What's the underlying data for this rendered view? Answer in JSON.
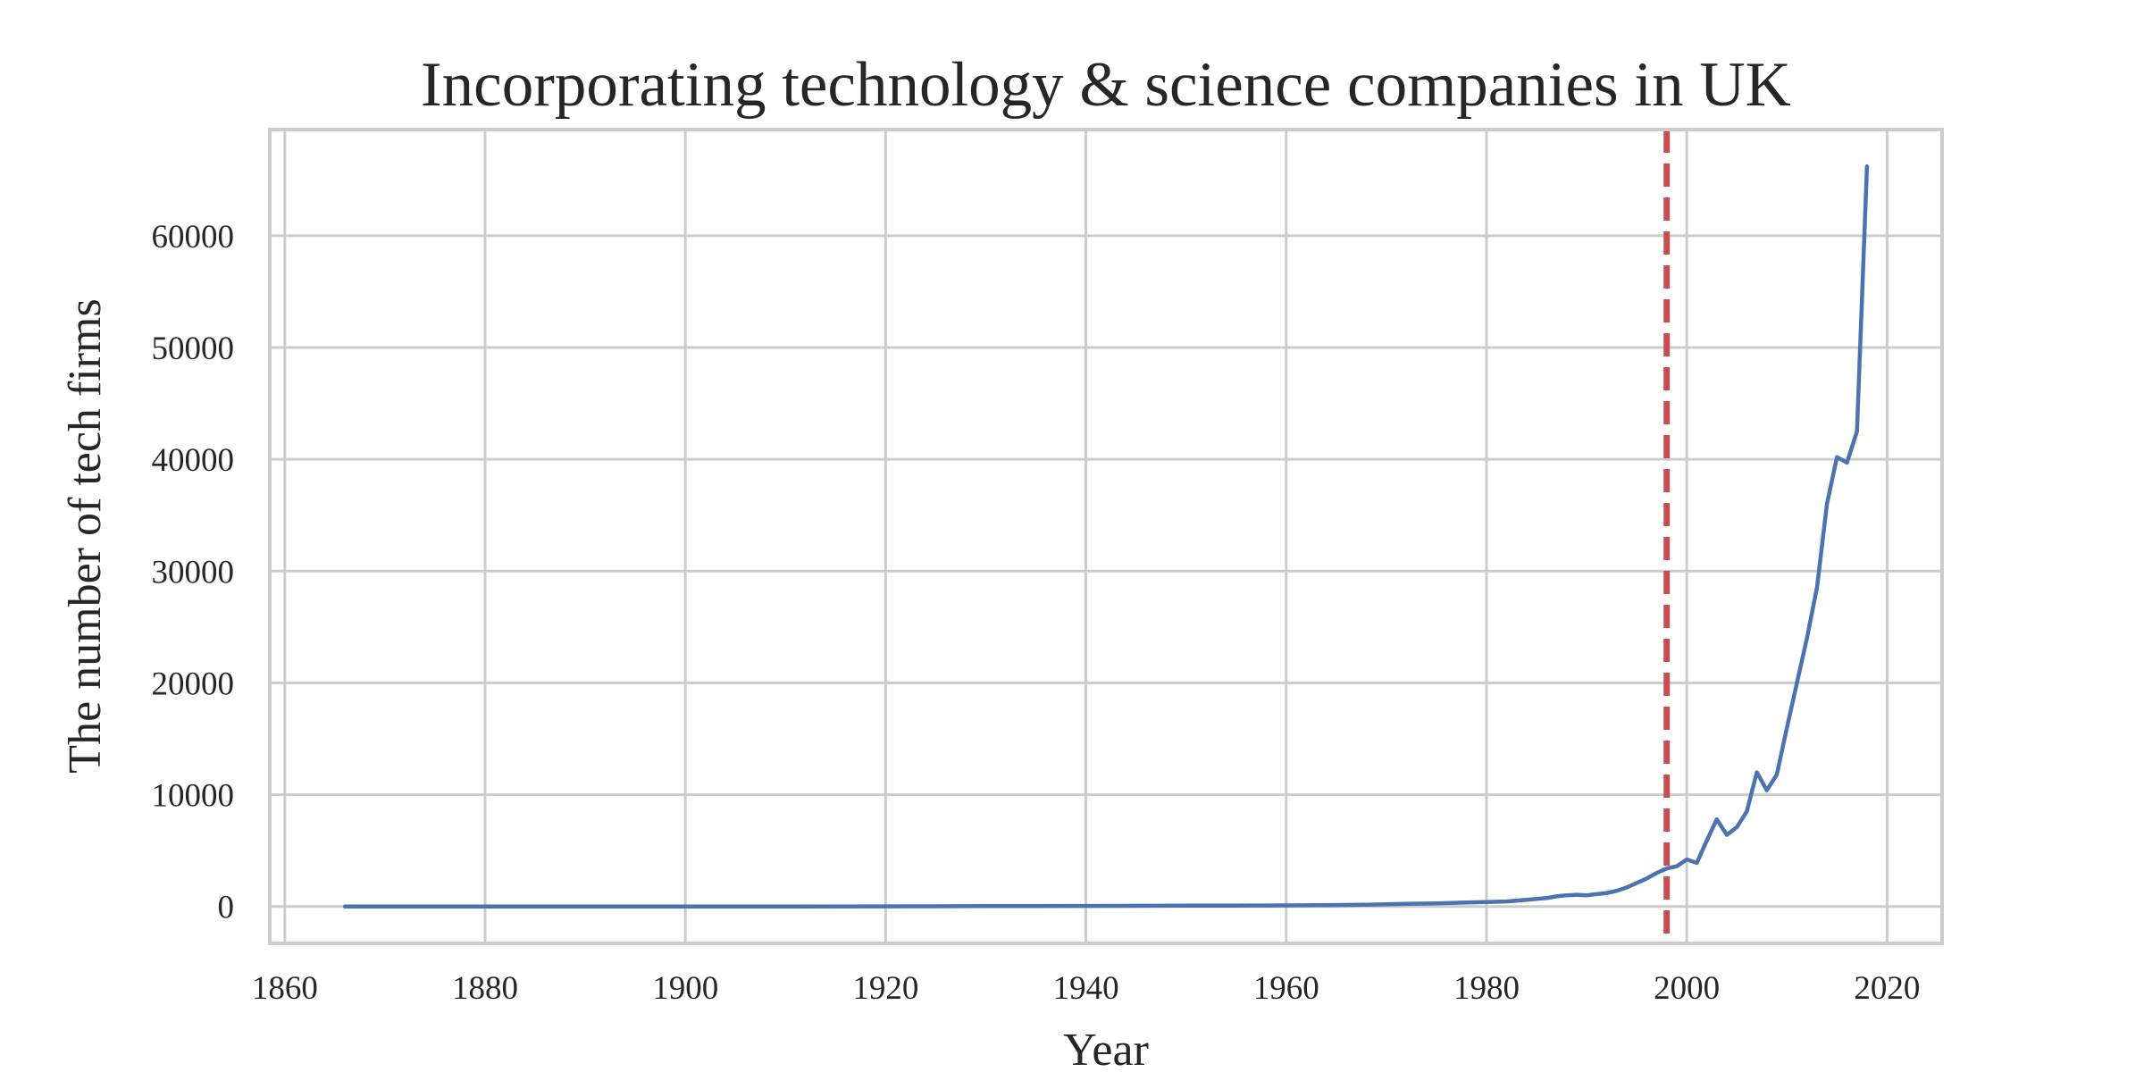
{
  "chart_data": {
    "type": "line",
    "title": "Incorporating technology & science companies in UK",
    "xlabel": "Year",
    "ylabel": "The number of tech firms",
    "xlim": [
      1858.5,
      2025.5
    ],
    "ylim": [
      -3300,
      69500
    ],
    "x_ticks": [
      1860,
      1880,
      1900,
      1920,
      1940,
      1960,
      1980,
      2000,
      2020
    ],
    "y_ticks": [
      0,
      10000,
      20000,
      30000,
      40000,
      50000,
      60000
    ],
    "grid": true,
    "legend": "none",
    "series": [
      {
        "color": "#4c72b0",
        "x": [
          1866,
          1870,
          1880,
          1890,
          1900,
          1910,
          1920,
          1925,
          1930,
          1935,
          1940,
          1945,
          1950,
          1955,
          1958,
          1960,
          1965,
          1968,
          1970,
          1972,
          1975,
          1978,
          1980,
          1982,
          1984,
          1986,
          1987,
          1988,
          1989,
          1990,
          1991,
          1992,
          1993,
          1994,
          1995,
          1996,
          1997,
          1998,
          1999,
          2000,
          2001,
          2002,
          2003,
          2004,
          2005,
          2006,
          2007,
          2008,
          2009,
          2010,
          2011,
          2012,
          2013,
          2014,
          2015,
          2016,
          2017,
          2018
        ],
        "y": [
          0,
          0,
          0,
          0,
          0,
          0,
          10,
          20,
          30,
          40,
          50,
          60,
          70,
          80,
          90,
          100,
          130,
          160,
          200,
          230,
          280,
          350,
          400,
          450,
          600,
          750,
          900,
          1000,
          1050,
          1000,
          1100,
          1200,
          1400,
          1700,
          2100,
          2500,
          3000,
          3400,
          3600,
          4200,
          3900,
          5900,
          7800,
          6400,
          7100,
          8500,
          12000,
          10400,
          11800,
          16000,
          20000,
          24000,
          28500,
          36000,
          40200,
          39700,
          42500,
          66200
        ]
      }
    ],
    "reference_lines": [
      {
        "orientation": "vertical",
        "x": 1998,
        "color": "#c44e52",
        "style": "dashed"
      }
    ]
  }
}
